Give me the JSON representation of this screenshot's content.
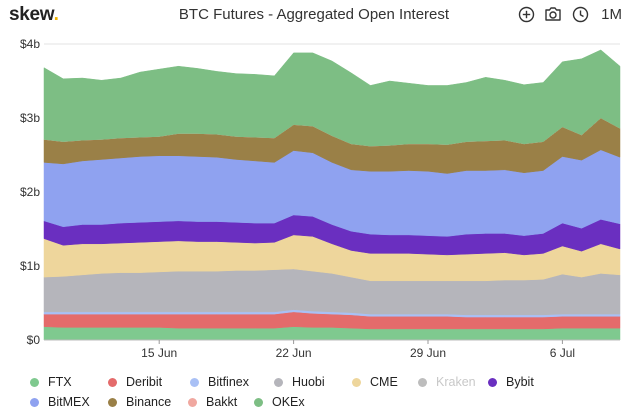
{
  "header": {
    "logo_text": "skew",
    "logo_dot": ".",
    "title": "BTC Futures - Aggregated Open Interest",
    "period_label": "1M",
    "icons": [
      "zoom-in-icon",
      "camera-icon",
      "clock-icon"
    ]
  },
  "chart_data": {
    "type": "area",
    "stacked": true,
    "title": "BTC Futures - Aggregated Open Interest",
    "xlabel": "",
    "ylabel": "",
    "x_ticks": [
      {
        "label": "15 Jun",
        "index": 6
      },
      {
        "label": "22 Jun",
        "index": 13
      },
      {
        "label": "29 Jun",
        "index": 20
      },
      {
        "label": "6 Jul",
        "index": 27
      }
    ],
    "y_ticks": [
      {
        "label": "$0",
        "value": 0
      },
      {
        "label": "$1b",
        "value": 1
      },
      {
        "label": "$2b",
        "value": 2
      },
      {
        "label": "$3b",
        "value": 3
      },
      {
        "label": "$4b",
        "value": 4
      }
    ],
    "ylim": [
      0,
      4
    ],
    "y_unit": "billion USD",
    "x": [
      "9 Jun",
      "10 Jun",
      "11 Jun",
      "12 Jun",
      "13 Jun",
      "14 Jun",
      "15 Jun",
      "16 Jun",
      "17 Jun",
      "18 Jun",
      "19 Jun",
      "20 Jun",
      "21 Jun",
      "22 Jun",
      "23 Jun",
      "24 Jun",
      "25 Jun",
      "26 Jun",
      "27 Jun",
      "28 Jun",
      "29 Jun",
      "30 Jun",
      "1 Jul",
      "2 Jul",
      "3 Jul",
      "4 Jul",
      "5 Jul",
      "6 Jul",
      "7 Jul",
      "8 Jul",
      "9 Jul"
    ],
    "legend_position": "bottom",
    "series": [
      {
        "name": "FTX",
        "color": "#7fc98f",
        "visible": true,
        "values": [
          0.18,
          0.17,
          0.17,
          0.17,
          0.17,
          0.17,
          0.17,
          0.16,
          0.16,
          0.16,
          0.16,
          0.16,
          0.16,
          0.18,
          0.17,
          0.17,
          0.16,
          0.15,
          0.15,
          0.15,
          0.15,
          0.15,
          0.15,
          0.15,
          0.15,
          0.15,
          0.15,
          0.16,
          0.16,
          0.16,
          0.16
        ]
      },
      {
        "name": "Deribit",
        "color": "#e46b6b",
        "visible": true,
        "values": [
          0.17,
          0.18,
          0.18,
          0.18,
          0.18,
          0.18,
          0.18,
          0.19,
          0.19,
          0.19,
          0.19,
          0.19,
          0.19,
          0.2,
          0.19,
          0.18,
          0.18,
          0.17,
          0.17,
          0.17,
          0.17,
          0.17,
          0.16,
          0.16,
          0.16,
          0.16,
          0.16,
          0.16,
          0.16,
          0.16,
          0.16
        ]
      },
      {
        "name": "Bitfinex",
        "color": "#a9c0f5",
        "visible": true,
        "values": [
          0.03,
          0.03,
          0.03,
          0.03,
          0.03,
          0.03,
          0.03,
          0.03,
          0.03,
          0.03,
          0.03,
          0.03,
          0.03,
          0.03,
          0.03,
          0.03,
          0.03,
          0.03,
          0.03,
          0.03,
          0.03,
          0.03,
          0.03,
          0.03,
          0.03,
          0.03,
          0.03,
          0.03,
          0.03,
          0.03,
          0.03
        ]
      },
      {
        "name": "Huobi",
        "color": "#b5b5bb",
        "visible": true,
        "values": [
          0.47,
          0.48,
          0.5,
          0.52,
          0.53,
          0.53,
          0.54,
          0.55,
          0.55,
          0.55,
          0.56,
          0.56,
          0.57,
          0.55,
          0.54,
          0.52,
          0.48,
          0.45,
          0.45,
          0.45,
          0.45,
          0.45,
          0.46,
          0.46,
          0.47,
          0.47,
          0.48,
          0.54,
          0.5,
          0.55,
          0.53
        ]
      },
      {
        "name": "CME",
        "color": "#eed69c",
        "visible": true,
        "values": [
          0.52,
          0.42,
          0.42,
          0.4,
          0.4,
          0.41,
          0.41,
          0.41,
          0.4,
          0.4,
          0.38,
          0.37,
          0.37,
          0.46,
          0.47,
          0.4,
          0.36,
          0.37,
          0.37,
          0.37,
          0.36,
          0.35,
          0.36,
          0.37,
          0.37,
          0.34,
          0.35,
          0.38,
          0.35,
          0.4,
          0.35
        ]
      },
      {
        "name": "Kraken",
        "color": "#bdbdbd",
        "visible": false,
        "values": [
          0,
          0,
          0,
          0,
          0,
          0,
          0,
          0,
          0,
          0,
          0,
          0,
          0,
          0,
          0,
          0,
          0,
          0,
          0,
          0,
          0,
          0,
          0,
          0,
          0,
          0,
          0,
          0,
          0,
          0,
          0
        ]
      },
      {
        "name": "Bybit",
        "color": "#6a2fc0",
        "visible": true,
        "values": [
          0.24,
          0.25,
          0.26,
          0.26,
          0.27,
          0.27,
          0.27,
          0.27,
          0.27,
          0.27,
          0.27,
          0.27,
          0.26,
          0.27,
          0.27,
          0.26,
          0.26,
          0.26,
          0.25,
          0.25,
          0.25,
          0.25,
          0.27,
          0.27,
          0.26,
          0.26,
          0.27,
          0.31,
          0.31,
          0.33,
          0.34
        ]
      },
      {
        "name": "BitMEX",
        "color": "#8fa2f0",
        "visible": true,
        "values": [
          0.79,
          0.85,
          0.86,
          0.88,
          0.88,
          0.89,
          0.89,
          0.88,
          0.88,
          0.87,
          0.85,
          0.84,
          0.82,
          0.87,
          0.86,
          0.84,
          0.83,
          0.85,
          0.86,
          0.87,
          0.87,
          0.85,
          0.86,
          0.85,
          0.86,
          0.85,
          0.85,
          0.9,
          0.92,
          0.94,
          0.9
        ]
      },
      {
        "name": "Binance",
        "color": "#9a8047",
        "visible": true,
        "values": [
          0.31,
          0.3,
          0.28,
          0.27,
          0.27,
          0.26,
          0.26,
          0.3,
          0.31,
          0.31,
          0.31,
          0.32,
          0.33,
          0.35,
          0.36,
          0.36,
          0.35,
          0.34,
          0.35,
          0.36,
          0.37,
          0.39,
          0.39,
          0.4,
          0.4,
          0.39,
          0.39,
          0.4,
          0.34,
          0.43,
          0.39
        ]
      },
      {
        "name": "Bakkt",
        "color": "#f0a8a0",
        "visible": true,
        "values": [
          0,
          0,
          0,
          0,
          0,
          0,
          0,
          0,
          0,
          0,
          0,
          0,
          0,
          0,
          0,
          0,
          0,
          0,
          0,
          0,
          0,
          0,
          0,
          0,
          0,
          0,
          0,
          0,
          0,
          0,
          0
        ]
      },
      {
        "name": "OKEx",
        "color": "#7dbe84",
        "visible": true,
        "values": [
          0.97,
          0.85,
          0.84,
          0.8,
          0.81,
          0.88,
          0.91,
          0.91,
          0.88,
          0.85,
          0.85,
          0.85,
          0.84,
          0.97,
          0.99,
          1.01,
          0.96,
          0.82,
          0.87,
          0.82,
          0.79,
          0.8,
          0.8,
          0.86,
          0.81,
          0.8,
          0.8,
          0.88,
          1.03,
          0.92,
          0.84
        ]
      }
    ]
  }
}
